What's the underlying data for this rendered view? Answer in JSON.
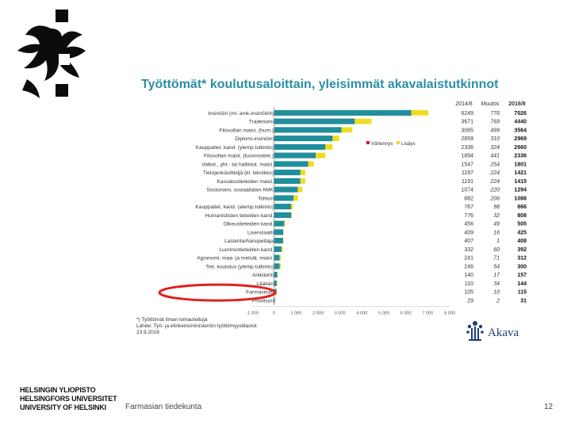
{
  "slide": {
    "logo_lines": [
      "HELSINGIN YLIOPISTO",
      "HELSINGFORS UNIVERSITET",
      "UNIVERSITY OF HELSINKI"
    ],
    "footer_text": "Farmasian tiedekunta",
    "page_number": "12"
  },
  "footnote": {
    "lines": [
      "*) Työttömät ilman lomautettuja",
      "Lähde: Työ- ja elinkeinoministeriön työttömyystilastot",
      "23.9.2016"
    ]
  },
  "akava": {
    "name": "Akava"
  },
  "colors": {
    "title": "#2b8fa6",
    "base_bar": "#1f8f9e",
    "increase": "#f0dc1e",
    "decrease": "#c8185a",
    "highlight_ellipse": "#e0201e"
  },
  "chart_data": {
    "type": "bar",
    "orientation": "horizontal",
    "stacked": true,
    "title": "Työttömät* koulutusaloittain, yleisimmät akavalaistutkinnot",
    "xlim": [
      -1000,
      8000
    ],
    "xticks": [
      "-1 000",
      "0",
      "1 000",
      "2 000",
      "3 000",
      "4 000",
      "5 000",
      "6 000",
      "7 000",
      "8 000"
    ],
    "legend": {
      "position": "right",
      "entries": [
        "Vähennys",
        "Lisäys"
      ]
    },
    "column_headers": [
      "2014/8",
      "Muutos",
      "2016/8"
    ],
    "categories": [
      "Insinööri (ml. amk-insinöörit)",
      "Tradenomi",
      "Filosofian maist. (hum.)",
      "Diplomi-insinööri",
      "Kauppatiet. kand. (ylemp.tutkinto)",
      "Filosofian maist. (luonnontiet.)",
      "Valtiot., yht.- tai hallintot. maist.",
      "Tietojenkäsittelijä (kl. teknikko)",
      "Kasvatustieteiden maist.",
      "Sosionomi, sosiaalialan AMK",
      "Tohtori",
      "Kauppatiet. kand. (alemp.tutkinto)",
      "Humanististen tieteiden kand.",
      "Oikeustieteiden kand.",
      "Lisensiaatti",
      "Lastentarhanopettaja",
      "Luonnontieteiden kand.",
      "Agronomi, maa- ja metsät. maist.",
      "Tiet. koulutus (ylemp.tutkinto)",
      "Arkkitehti",
      "Lääkäri",
      "Farmaseutti",
      "Proviisori"
    ],
    "series": [
      {
        "name": "",
        "values": [
          6249,
          3671,
          3065,
          2659,
          2336,
          1894,
          1547,
          1197,
          1191,
          1074,
          882,
          767,
          776,
          456,
          409,
          407,
          332,
          241,
          246,
          140,
          110,
          105,
          29
        ]
      },
      {
        "name": "Vähennys",
        "values": [
          0,
          0,
          0,
          0,
          0,
          0,
          0,
          0,
          0,
          0,
          0,
          0,
          0,
          0,
          0,
          0,
          0,
          0,
          0,
          0,
          0,
          0,
          0
        ]
      },
      {
        "name": "Lisäys",
        "values": [
          776,
          769,
          499,
          310,
          324,
          441,
          254,
          224,
          224,
          220,
          206,
          98,
          32,
          49,
          16,
          1,
          60,
          71,
          54,
          17,
          34,
          10,
          2
        ]
      }
    ],
    "table": {
      "y2014": [
        "6249",
        "3671",
        "3065",
        "2659",
        "2336",
        "1894",
        "1547",
        "1197",
        "1191",
        "1074",
        "882",
        "767",
        "776",
        "456",
        "409",
        "407",
        "332",
        "241",
        "246",
        "140",
        "110",
        "105",
        "29"
      ],
      "change": [
        "776",
        "769",
        "499",
        "310",
        "324",
        "441",
        "254",
        "224",
        "224",
        "220",
        "206",
        "98",
        "32",
        "49",
        "16",
        "1",
        "60",
        "71",
        "54",
        "17",
        "34",
        "10",
        "2"
      ],
      "y2016": [
        "7026",
        "4440",
        "3564",
        "2969",
        "2660",
        "2336",
        "1801",
        "1421",
        "1415",
        "1294",
        "1088",
        "866",
        "808",
        "505",
        "425",
        "408",
        "392",
        "312",
        "300",
        "157",
        "144",
        "115",
        "31"
      ]
    },
    "highlight_categories": [
      "Farmaseutti"
    ]
  }
}
